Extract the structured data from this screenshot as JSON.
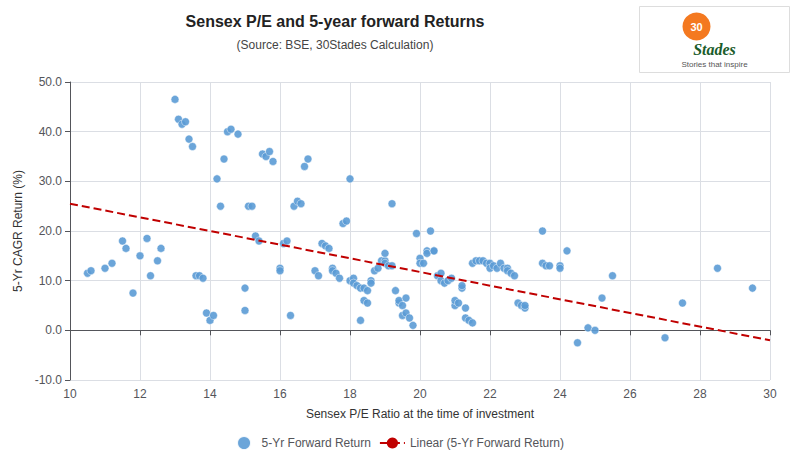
{
  "chart_data": {
    "type": "scatter",
    "title": "Sensex P/E and 5-year forward Returns",
    "subtitle": "(Source: BSE, 30Stades Calculation)",
    "xlabel": "Sensex P/E Ratio at the time of investment",
    "ylabel": "5-Yr CAGR Return (%)",
    "xlim": [
      10,
      30
    ],
    "ylim": [
      -10,
      50
    ],
    "xticks": [
      10,
      12,
      14,
      16,
      18,
      20,
      22,
      24,
      26,
      28,
      30
    ],
    "yticks": [
      {
        "value": -10.0,
        "label": "-10.0"
      },
      {
        "value": 0.0,
        "label": "0.0"
      },
      {
        "value": 10.0,
        "label": "10.0"
      },
      {
        "value": 20.0,
        "label": "20.0"
      },
      {
        "value": 30.0,
        "label": "30.0"
      },
      {
        "value": 40.0,
        "label": "40.0"
      },
      {
        "value": 50.0,
        "label": "50.0"
      }
    ],
    "grid": true,
    "legend": "bottom",
    "annotations": [
      "30",
      "Stades",
      "Stories that inspire"
    ],
    "series": [
      {
        "name": "5-Yr Forward Return",
        "type": "scatter",
        "color": "#5b9bd5",
        "marker": "circle",
        "x": [
          10.5,
          10.6,
          11.0,
          11.2,
          11.5,
          11.6,
          11.8,
          12.0,
          12.2,
          12.3,
          12.5,
          12.6,
          13.0,
          13.1,
          13.2,
          13.3,
          13.4,
          13.5,
          13.6,
          13.7,
          13.8,
          13.9,
          14.0,
          14.1,
          14.2,
          14.3,
          14.4,
          14.5,
          14.6,
          14.8,
          15.0,
          15.0,
          15.1,
          15.2,
          15.3,
          15.4,
          15.5,
          15.6,
          15.7,
          15.8,
          16.0,
          16.0,
          16.1,
          16.2,
          16.3,
          16.4,
          16.5,
          16.6,
          16.7,
          16.8,
          17.0,
          17.1,
          17.2,
          17.3,
          17.4,
          17.5,
          17.5,
          17.6,
          17.7,
          17.8,
          17.9,
          18.0,
          18.0,
          18.1,
          18.1,
          18.2,
          18.3,
          18.3,
          18.4,
          18.4,
          18.5,
          18.5,
          18.6,
          18.6,
          18.7,
          18.8,
          18.9,
          19.0,
          19.0,
          19.0,
          19.1,
          19.2,
          19.2,
          19.3,
          19.4,
          19.4,
          19.5,
          19.5,
          19.6,
          19.6,
          19.7,
          19.8,
          19.9,
          20.0,
          20.0,
          20.1,
          20.2,
          20.2,
          20.3,
          20.4,
          20.4,
          20.5,
          20.6,
          20.6,
          20.7,
          20.8,
          20.9,
          21.0,
          21.0,
          21.1,
          21.2,
          21.2,
          21.3,
          21.3,
          21.4,
          21.5,
          21.5,
          21.6,
          21.7,
          21.8,
          21.9,
          22.0,
          22.0,
          22.1,
          22.2,
          22.3,
          22.4,
          22.5,
          22.5,
          22.6,
          22.7,
          22.8,
          22.9,
          23.0,
          23.0,
          23.5,
          23.5,
          23.6,
          23.7,
          24.0,
          24.0,
          24.2,
          24.5,
          24.8,
          25.0,
          25.2,
          25.5,
          27.0,
          27.5,
          28.5,
          29.5
        ],
        "values": [
          11.5,
          12.0,
          12.5,
          13.5,
          18.0,
          16.5,
          7.5,
          15.0,
          18.5,
          11.0,
          14.0,
          16.5,
          46.5,
          42.5,
          41.5,
          42.0,
          38.5,
          37.0,
          11.0,
          11.0,
          10.5,
          3.5,
          2.0,
          3.0,
          30.5,
          25.0,
          34.5,
          40.0,
          40.5,
          39.5,
          8.5,
          4.0,
          25.0,
          25.0,
          19.0,
          18.0,
          35.5,
          35.0,
          36.0,
          34.0,
          12.5,
          12.0,
          17.5,
          18.0,
          3.0,
          25.0,
          26.0,
          25.5,
          33.0,
          34.5,
          12.0,
          11.0,
          17.5,
          17.0,
          16.5,
          12.5,
          12.0,
          11.5,
          10.5,
          21.5,
          22.0,
          30.5,
          10.0,
          10.5,
          9.5,
          9.0,
          8.5,
          2.0,
          8.5,
          6.0,
          5.5,
          8.0,
          10.0,
          9.5,
          12.0,
          12.5,
          14.0,
          14.0,
          13.5,
          15.5,
          13.0,
          13.0,
          25.5,
          8.0,
          5.5,
          6.0,
          5.0,
          3.0,
          3.5,
          6.5,
          2.5,
          1.0,
          19.5,
          14.5,
          13.5,
          13.5,
          16.0,
          15.5,
          20.0,
          16.0,
          16.0,
          11.0,
          11.5,
          10.0,
          9.5,
          10.0,
          10.5,
          5.0,
          6.0,
          5.5,
          8.5,
          9.0,
          4.5,
          2.5,
          2.0,
          1.5,
          13.5,
          14.0,
          14.0,
          14.0,
          13.5,
          13.5,
          12.5,
          13.0,
          12.5,
          13.5,
          12.5,
          12.5,
          12.0,
          11.5,
          11.0,
          5.5,
          5.0,
          4.5,
          5.0,
          20.0,
          13.5,
          13.0,
          13.0,
          13.0,
          12.5,
          16.0,
          -2.5,
          0.5,
          0.0,
          6.5,
          11.0,
          -1.5,
          5.5,
          12.5,
          8.5
        ]
      },
      {
        "name": "Linear (5-Yr Forward Return)",
        "type": "line",
        "color": "#c00000",
        "line_style": "dashed",
        "x": [
          10,
          30
        ],
        "values": [
          25.5,
          -2.0
        ]
      }
    ]
  }
}
